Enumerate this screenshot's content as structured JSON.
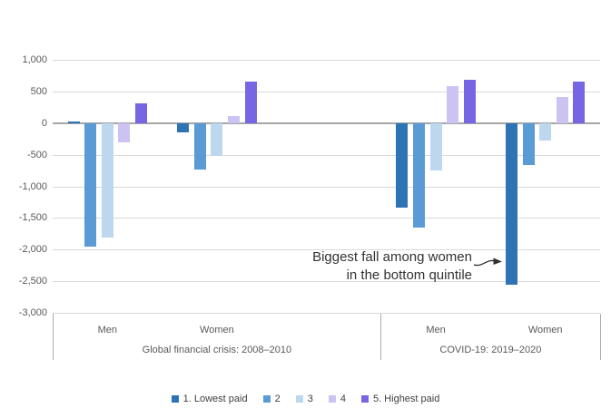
{
  "chart_data": {
    "type": "bar",
    "title": "",
    "categories": [
      "Men",
      "Women",
      "Men",
      "Women"
    ],
    "section_labels": [
      "Global financial crisis: 2008–2010",
      "COVID-19: 2019–2020"
    ],
    "series": [
      {
        "name": "1. Lowest paid",
        "color": "#2E74B5",
        "values": [
          25,
          -140,
          -1330,
          -2550
        ]
      },
      {
        "name": "2",
        "color": "#5B9BD5",
        "values": [
          -1950,
          -730,
          -1650,
          -670
        ]
      },
      {
        "name": "3",
        "color": "#BDD7EE",
        "values": [
          -1810,
          -520,
          -750,
          -270
        ]
      },
      {
        "name": "4",
        "color": "#CCC3F2",
        "values": [
          -300,
          110,
          590,
          410
        ]
      },
      {
        "name": "5. Highest paid",
        "color": "#7766E3",
        "values": [
          310,
          650,
          690,
          660
        ]
      }
    ],
    "ylim": [
      -3000,
      1000
    ],
    "ytick_step": 500,
    "ytick_labels": [
      "1,000",
      "500",
      "0",
      "-500",
      "-1,000",
      "-1,500",
      "-2,000",
      "-2,500",
      "-3,000"
    ],
    "ytick_values": [
      1000,
      500,
      0,
      -500,
      -1000,
      -1500,
      -2000,
      -2500,
      -3000
    ],
    "grid": true,
    "legend_position": "bottom",
    "annotation": {
      "line1": "Biggest fall among women",
      "line2": "in the bottom quintile",
      "target": "COVID-19 Women, quintile 1"
    },
    "colors": {
      "gridline": "#D9D9D9",
      "zero_line": "#A6A6A6",
      "axis_divider": "#ABABAB",
      "label_text": "#595959",
      "legend_text": "#404040",
      "annotation_text": "#333333"
    }
  }
}
